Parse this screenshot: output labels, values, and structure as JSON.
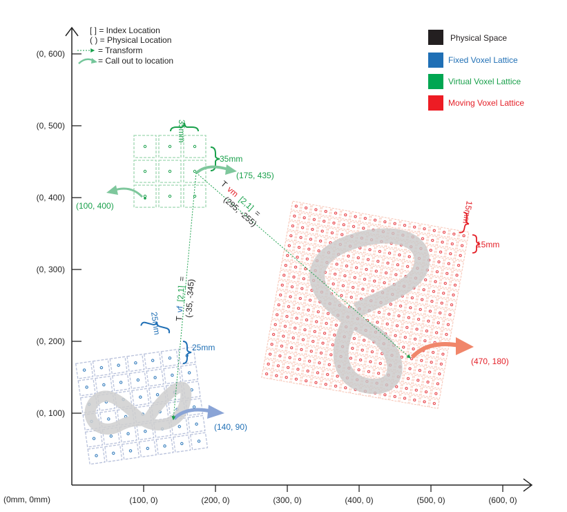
{
  "axes": {
    "x_ticks": [
      {
        "label": "(100, 0)",
        "value": 100
      },
      {
        "label": "(200, 0)",
        "value": 200
      },
      {
        "label": "(300, 0)",
        "value": 300
      },
      {
        "label": "(400, 0)",
        "value": 400
      },
      {
        "label": "(500, 0)",
        "value": 500
      },
      {
        "label": "(600, 0)",
        "value": 600
      }
    ],
    "y_ticks": [
      {
        "label": "(0, 100)",
        "value": 100
      },
      {
        "label": "(0, 200)",
        "value": 200
      },
      {
        "label": "(0, 300)",
        "value": 300
      },
      {
        "label": "(0, 400)",
        "value": 400
      },
      {
        "label": "(0, 500)",
        "value": 500
      },
      {
        "label": "(0, 600)",
        "value": 600
      }
    ],
    "origin_label": "(0mm, 0mm)"
  },
  "notation_legend": {
    "index": "[ ] = Index Location",
    "physical": "( ) = Physical Location",
    "transform": "= Transform",
    "callout": "= Call out to location"
  },
  "color_legend": [
    {
      "label": "Physical Space",
      "color": "#231f20",
      "text_color": "#231f20"
    },
    {
      "label": "Fixed Voxel Lattice",
      "color": "#1f6fb5",
      "text_color": "#1f6fb5"
    },
    {
      "label": "Virtual Voxel Lattice",
      "color": "#00a651",
      "text_color": "#19a04b"
    },
    {
      "label": "Moving Voxel Lattice",
      "color": "#ed1c24",
      "text_color": "#e41e26"
    }
  ],
  "virtual_lattice": {
    "spacing_top": "35mm",
    "spacing_side": "35mm",
    "point_label": "(175, 435)",
    "origin_label": "(100, 400)",
    "color": "#19a04b"
  },
  "fixed_lattice": {
    "spacing_top": "25mm",
    "spacing_side": "25mm",
    "point_label": "(140, 90)",
    "color": "#1f6fb5"
  },
  "moving_lattice": {
    "spacing_top": "15mm",
    "spacing_side": "15mm",
    "point_label": "(470, 180)",
    "color": "#e41e26"
  },
  "transform_vm": {
    "prefix": "T",
    "sub": "vm",
    "index": "[2,1]",
    "eq": "=",
    "value": "(295, -255)"
  },
  "transform_vf": {
    "prefix": "T",
    "sub": "vf",
    "index": "[2,1]",
    "eq": "=",
    "value": "(-35, -345)"
  }
}
